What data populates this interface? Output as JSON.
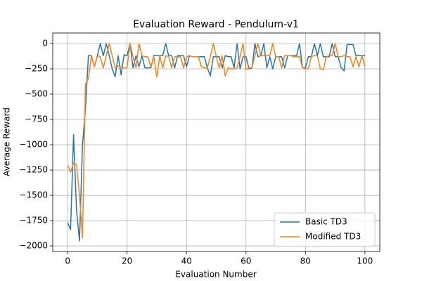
{
  "chart_data": {
    "type": "line",
    "title": "Evaluation Reward - Pendulum-v1",
    "x_label": "Evaluation Number",
    "y_label": "Average Reward",
    "x": [
      0,
      1,
      2,
      3,
      4,
      5,
      6,
      7,
      8,
      9,
      10,
      11,
      12,
      13,
      14,
      15,
      16,
      17,
      18,
      19,
      20,
      21,
      22,
      23,
      24,
      25,
      26,
      27,
      28,
      29,
      30,
      31,
      32,
      33,
      34,
      35,
      36,
      37,
      38,
      39,
      40,
      41,
      42,
      43,
      44,
      45,
      46,
      47,
      48,
      49,
      50,
      51,
      52,
      53,
      54,
      55,
      56,
      57,
      58,
      59,
      60,
      61,
      62,
      63,
      64,
      65,
      66,
      67,
      68,
      69,
      70,
      71,
      72,
      73,
      74,
      75,
      76,
      77,
      78,
      79,
      80,
      81,
      82,
      83,
      84,
      85,
      86,
      87,
      88,
      89,
      90,
      91,
      92,
      93,
      94,
      95,
      96,
      97,
      98,
      99,
      100
    ],
    "series": [
      {
        "name": "Basic TD3",
        "color": "#1f77b4",
        "values": [
          -1770,
          -1840,
          -900,
          -1650,
          -1950,
          -1000,
          -650,
          -120,
          -120,
          -230,
          -120,
          0,
          -120,
          0,
          -120,
          -250,
          -330,
          -120,
          -310,
          -110,
          -120,
          0,
          -240,
          -120,
          -230,
          -120,
          -240,
          -240,
          -240,
          -120,
          -120,
          -120,
          -120,
          0,
          -120,
          -120,
          -240,
          -120,
          -120,
          -120,
          -230,
          -120,
          -130,
          -130,
          -130,
          -130,
          -130,
          -240,
          -320,
          -130,
          -130,
          -130,
          -240,
          -120,
          -130,
          -130,
          -240,
          0,
          -250,
          -130,
          -130,
          -250,
          -240,
          0,
          -130,
          -120,
          0,
          -240,
          -130,
          -250,
          -130,
          -130,
          -130,
          -240,
          -120,
          -120,
          -120,
          -120,
          0,
          -240,
          -240,
          -130,
          -130,
          0,
          -120,
          0,
          -130,
          -130,
          -130,
          0,
          -130,
          -130,
          -240,
          -270,
          -10,
          -10,
          -10,
          -120,
          -120,
          -120,
          -120
        ]
      },
      {
        "name": "Modified TD3",
        "color": "#ff7f0e",
        "values": [
          -1200,
          -1270,
          -1180,
          -1200,
          -1500,
          -1920,
          -400,
          -350,
          -120,
          -230,
          -120,
          -130,
          -240,
          -120,
          0,
          -120,
          -240,
          -220,
          -230,
          -240,
          -240,
          0,
          -130,
          -240,
          0,
          -120,
          -130,
          -130,
          -230,
          -130,
          -330,
          -120,
          -240,
          -120,
          -130,
          -240,
          -130,
          -130,
          -130,
          -240,
          -130,
          -120,
          -130,
          -130,
          -130,
          -230,
          -240,
          -240,
          -130,
          0,
          -130,
          -240,
          -120,
          -320,
          -240,
          -250,
          -250,
          -240,
          -130,
          0,
          -260,
          -240,
          -240,
          -120,
          0,
          -120,
          -120,
          -120,
          -120,
          0,
          -130,
          -130,
          -240,
          -120,
          -120,
          -120,
          -130,
          -130,
          -130,
          -240,
          -250,
          -250,
          -130,
          -120,
          -120,
          -250,
          -260,
          -130,
          -120,
          -120,
          0,
          -130,
          -130,
          -120,
          -130,
          -130,
          -230,
          -130,
          -230,
          -120,
          -230
        ]
      }
    ],
    "xlim": [
      -5,
      105
    ],
    "ylim": [
      -2055,
      104
    ],
    "xticks": [
      0,
      20,
      40,
      60,
      80,
      100
    ],
    "yticks": [
      {
        "value": -2000,
        "label": "−2000"
      },
      {
        "value": -1750,
        "label": "−1750"
      },
      {
        "value": -1500,
        "label": "−1500"
      },
      {
        "value": -1250,
        "label": "−1250"
      },
      {
        "value": -1000,
        "label": "−1000"
      },
      {
        "value": -750,
        "label": "−750"
      },
      {
        "value": -500,
        "label": "−500"
      },
      {
        "value": -250,
        "label": "−250"
      },
      0
    ],
    "grid": true,
    "legend": "lower right"
  }
}
